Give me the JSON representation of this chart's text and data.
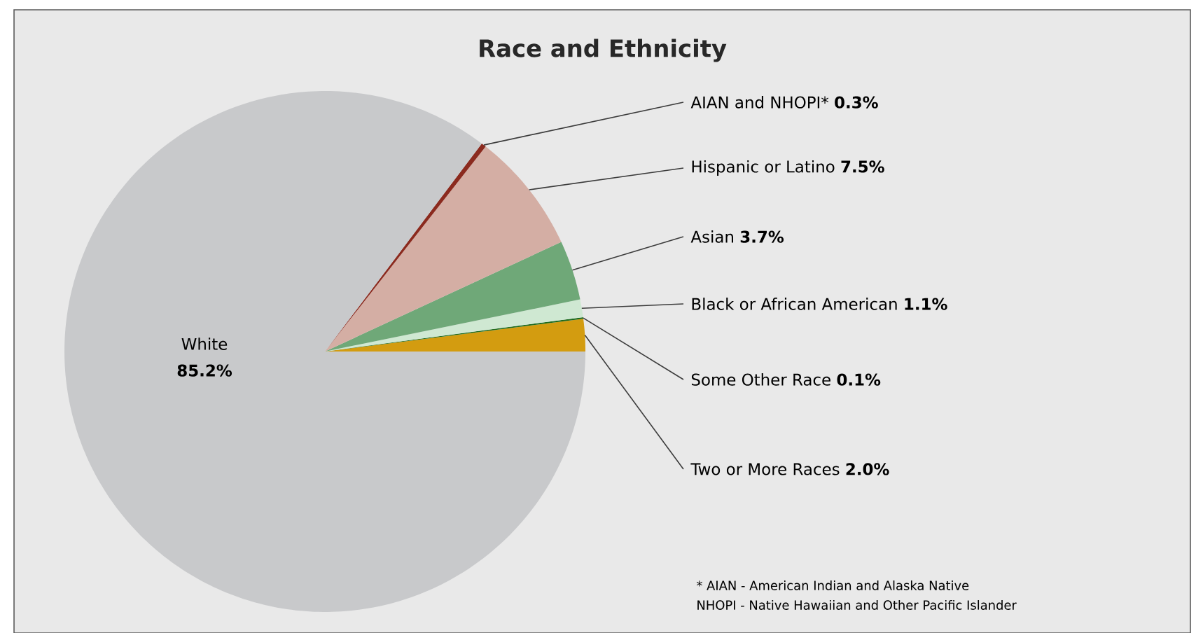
{
  "chart_data": {
    "type": "pie",
    "title": "Race and Ethnicity",
    "categories": [
      "Two or More Races",
      "Some Other Race",
      "Black or African American",
      "Asian",
      "Hispanic or Latino",
      "AIAN and NHOPI*",
      "White"
    ],
    "values": [
      2.0,
      0.1,
      1.1,
      3.7,
      7.5,
      0.3,
      85.2
    ],
    "value_labels": [
      "2.0%",
      "0.1%",
      "1.1%",
      "3.7%",
      "7.5%",
      "0.3%",
      "85.2%"
    ],
    "colors": [
      "#d39c10",
      "#1e6b1e",
      "#cfe8d2",
      "#6fa878",
      "#d4aea4",
      "#8b2a1e",
      "#c8c9cb"
    ],
    "annotations": [
      "* AIAN - American Indian and Alaska Native",
      "NHOPI - Native Hawaiian and Other Pacific Islander"
    ]
  }
}
